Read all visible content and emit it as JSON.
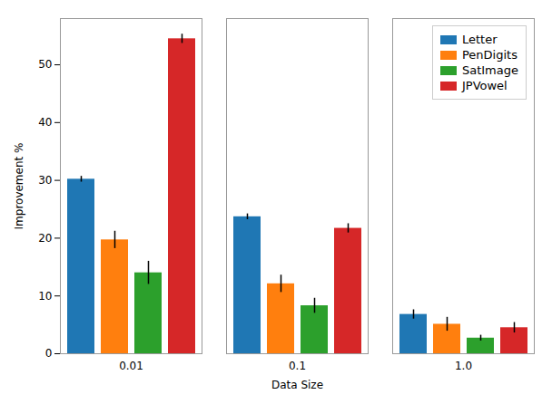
{
  "chart_data": {
    "type": "bar",
    "xlabel": "Data Size",
    "ylabel": "Improvement %",
    "categories": [
      "0.01",
      "0.1",
      "1.0"
    ],
    "series": [
      {
        "name": "Letter",
        "color": "#1f77b4",
        "values": [
          30.2,
          23.7,
          6.8
        ],
        "errors": [
          0.5,
          0.5,
          0.8
        ]
      },
      {
        "name": "PenDigits",
        "color": "#ff7f0e",
        "values": [
          19.7,
          12.1,
          5.1
        ],
        "errors": [
          1.5,
          1.5,
          1.2
        ]
      },
      {
        "name": "SatImage",
        "color": "#2ca02c",
        "values": [
          14.0,
          8.3,
          2.7
        ],
        "errors": [
          2.0,
          1.3,
          0.5
        ]
      },
      {
        "name": "JPVowel",
        "color": "#d62728",
        "values": [
          54.5,
          21.7,
          4.5
        ],
        "errors": [
          0.8,
          0.8,
          0.9
        ]
      }
    ],
    "ylim": [
      0,
      58
    ],
    "yticks": [
      0,
      10,
      20,
      30,
      40,
      50
    ],
    "legend": "upper right"
  }
}
